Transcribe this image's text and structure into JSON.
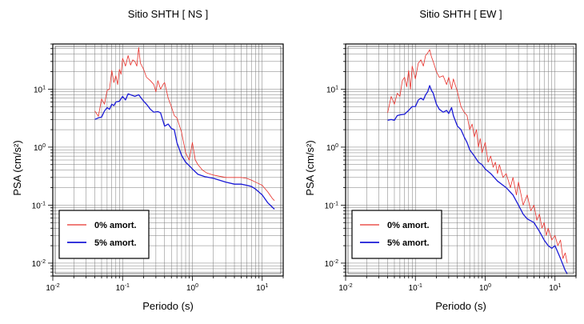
{
  "chart_data": [
    {
      "type": "line",
      "title": "Sitio SHTH [ NS ]",
      "xlabel": "Periodo (s)",
      "ylabel": "PSA (cm/s²)",
      "xscale": "log",
      "yscale": "log",
      "xlim": [
        0.01,
        20
      ],
      "ylim": [
        0.006,
        60
      ],
      "grid": true,
      "legend_position": "bottom-left",
      "xticks": [
        {
          "value": 0.01,
          "base": "10",
          "exp": "-2"
        },
        {
          "value": 0.1,
          "base": "10",
          "exp": "-1"
        },
        {
          "value": 1,
          "base": "10",
          "exp": "0"
        },
        {
          "value": 10,
          "base": "10",
          "exp": "1"
        }
      ],
      "yticks": [
        {
          "value": 0.01,
          "base": "10",
          "exp": "-2"
        },
        {
          "value": 0.1,
          "base": "10",
          "exp": "-1"
        },
        {
          "value": 1,
          "base": "10",
          "exp": "0"
        },
        {
          "value": 10,
          "base": "10",
          "exp": "1"
        }
      ],
      "series": [
        {
          "name": "0% amort.",
          "color": "#e8302a",
          "width": 0.8,
          "points": [
            [
              0.04,
              4.2
            ],
            [
              0.045,
              3.4
            ],
            [
              0.05,
              6.8
            ],
            [
              0.055,
              5.5
            ],
            [
              0.06,
              9.5
            ],
            [
              0.065,
              10
            ],
            [
              0.07,
              21
            ],
            [
              0.075,
              13
            ],
            [
              0.08,
              17
            ],
            [
              0.085,
              12
            ],
            [
              0.09,
              22
            ],
            [
              0.095,
              18
            ],
            [
              0.1,
              34
            ],
            [
              0.11,
              25
            ],
            [
              0.12,
              38
            ],
            [
              0.13,
              26
            ],
            [
              0.14,
              32
            ],
            [
              0.15,
              30
            ],
            [
              0.16,
              25
            ],
            [
              0.17,
              52
            ],
            [
              0.18,
              28
            ],
            [
              0.2,
              22
            ],
            [
              0.22,
              16
            ],
            [
              0.25,
              14
            ],
            [
              0.28,
              12
            ],
            [
              0.3,
              9
            ],
            [
              0.32,
              14
            ],
            [
              0.35,
              10
            ],
            [
              0.38,
              12
            ],
            [
              0.4,
              13
            ],
            [
              0.45,
              7
            ],
            [
              0.5,
              5
            ],
            [
              0.55,
              3.5
            ],
            [
              0.6,
              3.2
            ],
            [
              0.7,
              1.8
            ],
            [
              0.8,
              0.8
            ],
            [
              0.9,
              0.6
            ],
            [
              1.0,
              1.2
            ],
            [
              1.1,
              0.6
            ],
            [
              1.2,
              0.5
            ],
            [
              1.4,
              0.4
            ],
            [
              1.6,
              0.36
            ],
            [
              2,
              0.33
            ],
            [
              3,
              0.3
            ],
            [
              4,
              0.3
            ],
            [
              5,
              0.3
            ],
            [
              6,
              0.29
            ],
            [
              7,
              0.27
            ],
            [
              8,
              0.25
            ],
            [
              10,
              0.22
            ],
            [
              12,
              0.17
            ],
            [
              14,
              0.13
            ],
            [
              15,
              0.12
            ]
          ]
        },
        {
          "name": "5% amort.",
          "color": "#1a1ad6",
          "width": 1.3,
          "points": [
            [
              0.04,
              3.0
            ],
            [
              0.045,
              3.2
            ],
            [
              0.05,
              3.3
            ],
            [
              0.055,
              4.2
            ],
            [
              0.06,
              4.8
            ],
            [
              0.065,
              4.5
            ],
            [
              0.07,
              5.5
            ],
            [
              0.075,
              5.2
            ],
            [
              0.08,
              6.0
            ],
            [
              0.09,
              6.2
            ],
            [
              0.1,
              7.5
            ],
            [
              0.11,
              6.5
            ],
            [
              0.12,
              8.3
            ],
            [
              0.13,
              8.0
            ],
            [
              0.15,
              7.5
            ],
            [
              0.17,
              8.0
            ],
            [
              0.2,
              6.2
            ],
            [
              0.22,
              5.5
            ],
            [
              0.25,
              4.5
            ],
            [
              0.28,
              4.0
            ],
            [
              0.32,
              4.1
            ],
            [
              0.35,
              3.9
            ],
            [
              0.4,
              2.3
            ],
            [
              0.45,
              2.5
            ],
            [
              0.5,
              2.1
            ],
            [
              0.55,
              2.0
            ],
            [
              0.6,
              1.2
            ],
            [
              0.7,
              0.72
            ],
            [
              0.8,
              0.55
            ],
            [
              0.9,
              0.48
            ],
            [
              1.0,
              0.42
            ],
            [
              1.2,
              0.34
            ],
            [
              1.5,
              0.31
            ],
            [
              2,
              0.29
            ],
            [
              3,
              0.25
            ],
            [
              4,
              0.23
            ],
            [
              5,
              0.23
            ],
            [
              6,
              0.22
            ],
            [
              7,
              0.21
            ],
            [
              8,
              0.19
            ],
            [
              10,
              0.15
            ],
            [
              12,
              0.11
            ],
            [
              15,
              0.085
            ]
          ]
        }
      ]
    },
    {
      "type": "line",
      "title": "Sitio SHTH [ EW ]",
      "xlabel": "Periodo (s)",
      "ylabel": "PSA (cm/s²)",
      "xscale": "log",
      "yscale": "log",
      "xlim": [
        0.01,
        20
      ],
      "ylim": [
        0.006,
        60
      ],
      "grid": true,
      "legend_position": "bottom-left",
      "xticks": [
        {
          "value": 0.01,
          "base": "10",
          "exp": "-2"
        },
        {
          "value": 0.1,
          "base": "10",
          "exp": "-1"
        },
        {
          "value": 1,
          "base": "10",
          "exp": "0"
        },
        {
          "value": 10,
          "base": "10",
          "exp": "1"
        }
      ],
      "yticks": [
        {
          "value": 0.01,
          "base": "10",
          "exp": "-2"
        },
        {
          "value": 0.1,
          "base": "10",
          "exp": "-1"
        },
        {
          "value": 1,
          "base": "10",
          "exp": "0"
        },
        {
          "value": 10,
          "base": "10",
          "exp": "1"
        }
      ],
      "series": [
        {
          "name": "0% amort.",
          "color": "#e8302a",
          "width": 0.8,
          "points": [
            [
              0.04,
              3.9
            ],
            [
              0.045,
              7.5
            ],
            [
              0.05,
              5.5
            ],
            [
              0.055,
              8.5
            ],
            [
              0.06,
              7.5
            ],
            [
              0.065,
              14
            ],
            [
              0.07,
              16
            ],
            [
              0.075,
              11
            ],
            [
              0.08,
              21
            ],
            [
              0.085,
              10
            ],
            [
              0.09,
              25
            ],
            [
              0.1,
              15
            ],
            [
              0.11,
              28
            ],
            [
              0.12,
              32
            ],
            [
              0.13,
              25
            ],
            [
              0.14,
              38
            ],
            [
              0.15,
              42
            ],
            [
              0.16,
              48
            ],
            [
              0.17,
              36
            ],
            [
              0.18,
              30
            ],
            [
              0.2,
              20
            ],
            [
              0.22,
              16
            ],
            [
              0.25,
              17
            ],
            [
              0.28,
              12
            ],
            [
              0.3,
              16
            ],
            [
              0.33,
              10
            ],
            [
              0.35,
              15
            ],
            [
              0.4,
              9
            ],
            [
              0.45,
              5
            ],
            [
              0.5,
              4
            ],
            [
              0.55,
              3.5
            ],
            [
              0.6,
              2.0
            ],
            [
              0.65,
              2.5
            ],
            [
              0.7,
              1.5
            ],
            [
              0.75,
              2.0
            ],
            [
              0.8,
              1.0
            ],
            [
              0.85,
              1.4
            ],
            [
              0.9,
              0.8
            ],
            [
              1.0,
              1.2
            ],
            [
              1.1,
              0.55
            ],
            [
              1.2,
              0.7
            ],
            [
              1.3,
              0.45
            ],
            [
              1.4,
              0.55
            ],
            [
              1.5,
              0.35
            ],
            [
              1.6,
              0.5
            ],
            [
              1.8,
              0.3
            ],
            [
              2,
              0.35
            ],
            [
              2.3,
              0.2
            ],
            [
              2.5,
              0.3
            ],
            [
              2.8,
              0.15
            ],
            [
              3,
              0.25
            ],
            [
              3.5,
              0.1
            ],
            [
              4,
              0.15
            ],
            [
              4.5,
              0.08
            ],
            [
              5,
              0.1
            ],
            [
              5.5,
              0.055
            ],
            [
              6,
              0.07
            ],
            [
              6.5,
              0.04
            ],
            [
              7,
              0.05
            ],
            [
              7.5,
              0.03
            ],
            [
              8,
              0.04
            ],
            [
              9,
              0.025
            ],
            [
              10,
              0.03
            ],
            [
              11,
              0.02
            ],
            [
              12,
              0.025
            ],
            [
              13,
              0.012
            ],
            [
              14,
              0.015
            ],
            [
              15,
              0.01
            ]
          ]
        },
        {
          "name": "5% amort.",
          "color": "#1a1ad6",
          "width": 1.3,
          "points": [
            [
              0.04,
              2.9
            ],
            [
              0.045,
              3.0
            ],
            [
              0.05,
              2.9
            ],
            [
              0.055,
              3.5
            ],
            [
              0.06,
              3.6
            ],
            [
              0.07,
              3.7
            ],
            [
              0.08,
              4.3
            ],
            [
              0.09,
              5.0
            ],
            [
              0.1,
              5.0
            ],
            [
              0.11,
              6.5
            ],
            [
              0.12,
              7.0
            ],
            [
              0.13,
              6.5
            ],
            [
              0.14,
              8.0
            ],
            [
              0.15,
              9.0
            ],
            [
              0.16,
              11.5
            ],
            [
              0.17,
              9.5
            ],
            [
              0.18,
              8.5
            ],
            [
              0.2,
              5.5
            ],
            [
              0.22,
              4.5
            ],
            [
              0.25,
              4.0
            ],
            [
              0.28,
              4.3
            ],
            [
              0.3,
              3.8
            ],
            [
              0.33,
              4.8
            ],
            [
              0.35,
              3.5
            ],
            [
              0.4,
              2.3
            ],
            [
              0.45,
              2.0
            ],
            [
              0.5,
              1.5
            ],
            [
              0.55,
              1.2
            ],
            [
              0.6,
              0.9
            ],
            [
              0.7,
              0.7
            ],
            [
              0.8,
              0.55
            ],
            [
              0.9,
              0.5
            ],
            [
              1.0,
              0.42
            ],
            [
              1.2,
              0.35
            ],
            [
              1.5,
              0.26
            ],
            [
              2,
              0.2
            ],
            [
              2.5,
              0.15
            ],
            [
              3,
              0.1
            ],
            [
              3.5,
              0.07
            ],
            [
              4,
              0.058
            ],
            [
              5,
              0.05
            ],
            [
              6,
              0.035
            ],
            [
              7,
              0.025
            ],
            [
              8,
              0.02
            ],
            [
              9,
              0.018
            ],
            [
              10,
              0.02
            ],
            [
              12,
              0.012
            ],
            [
              14,
              0.0075
            ],
            [
              15,
              0.0065
            ]
          ]
        }
      ]
    }
  ]
}
